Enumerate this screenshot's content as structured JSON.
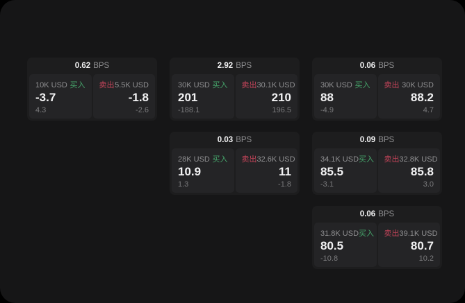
{
  "theme": {
    "colors": {
      "outside-bg": "#000000",
      "window-bg": "#161617",
      "card-bg": "#1d1d1e",
      "panel-bg": "#242426",
      "price-white": "#f2f2f3",
      "label-grey": "#909092",
      "sub-grey": "#7b7b7d",
      "buy-green": "#46a56b",
      "sell-red": "#c24459"
    }
  },
  "cards": [
    {
      "bps": "0.62",
      "unit": "BPS",
      "buy": {
        "amount": "10K USD",
        "label": "买入",
        "price": "-3.7",
        "sub": "4.3"
      },
      "sell": {
        "label": "卖出",
        "amount": "5.5K USD",
        "price": "-1.8",
        "sub": "-2.6"
      }
    },
    {
      "bps": "2.92",
      "unit": "BPS",
      "buy": {
        "amount": "30K USD",
        "label": "买入",
        "price": "201",
        "sub": "-188.1"
      },
      "sell": {
        "label": "卖出",
        "amount": "30.1K USD",
        "price": "210",
        "sub": "196.5"
      }
    },
    {
      "bps": "0.06",
      "unit": "BPS",
      "buy": {
        "amount": "30K USD",
        "label": "买入",
        "price": "88",
        "sub": "-4.9"
      },
      "sell": {
        "label": "卖出",
        "amount": "30K USD",
        "price": "88.2",
        "sub": "4.7"
      }
    },
    {
      "bps": "0.03",
      "unit": "BPS",
      "buy": {
        "amount": "28K USD",
        "label": "买入",
        "price": "10.9",
        "sub": "1.3"
      },
      "sell": {
        "label": "卖出",
        "amount": "32.6K USD",
        "price": "11",
        "sub": "-1.8"
      }
    },
    {
      "bps": "0.09",
      "unit": "BPS",
      "buy": {
        "amount": "34.1K USD",
        "label": "买入",
        "price": "85.5",
        "sub": "-3.1"
      },
      "sell": {
        "label": "卖出",
        "amount": "32.8K USD",
        "price": "85.8",
        "sub": "3.0"
      }
    },
    {
      "bps": "0.06",
      "unit": "BPS",
      "buy": {
        "amount": "31.8K USD",
        "label": "买入",
        "price": "80.5",
        "sub": "-10.8"
      },
      "sell": {
        "label": "卖出",
        "amount": "39.1K USD",
        "price": "80.7",
        "sub": "10.2"
      }
    }
  ]
}
